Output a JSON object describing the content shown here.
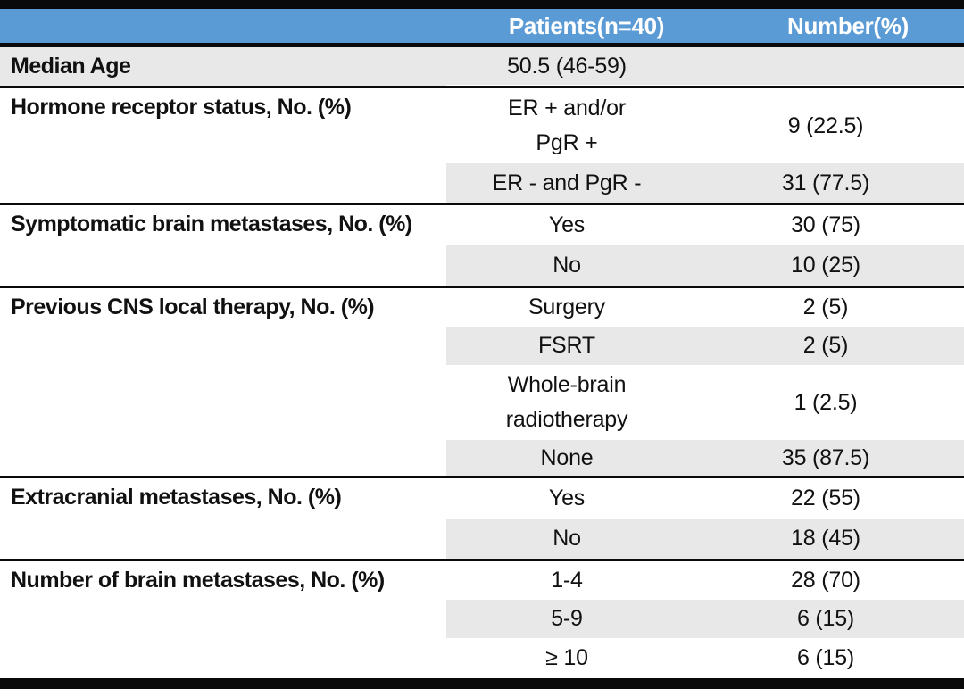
{
  "header": {
    "patients": "Patients(n=40)",
    "number": "Number(%)"
  },
  "sections": [
    {
      "label": "Median Age",
      "rows": [
        {
          "patients": "50.5 (46-59)",
          "number": ""
        }
      ]
    },
    {
      "label": "Hormone receptor status, No. (%)",
      "rows": [
        {
          "patients": "ER + and/or\nPgR +",
          "number": "9 (22.5)"
        },
        {
          "patients": "ER - and PgR -",
          "number": "31 (77.5)"
        }
      ]
    },
    {
      "label": "Symptomatic brain metastases, No. (%)",
      "rows": [
        {
          "patients": "Yes",
          "number": "30 (75)"
        },
        {
          "patients": "No",
          "number": "10 (25)"
        }
      ]
    },
    {
      "label": "Previous CNS local therapy, No. (%)",
      "rows": [
        {
          "patients": "Surgery",
          "number": "2 (5)"
        },
        {
          "patients": "FSRT",
          "number": "2 (5)"
        },
        {
          "patients": "Whole-brain\nradiotherapy",
          "number": "1 (2.5)"
        },
        {
          "patients": "None",
          "number": "35 (87.5)"
        }
      ]
    },
    {
      "label": "Extracranial metastases, No. (%)",
      "rows": [
        {
          "patients": "Yes",
          "number": "22 (55)"
        },
        {
          "patients": "No",
          "number": "18 (45)"
        }
      ]
    },
    {
      "label": "Number of brain metastases, No. (%)",
      "rows": [
        {
          "patients": "1-4",
          "number": "28 (70)"
        },
        {
          "patients": "5-9",
          "number": "6 (15)"
        },
        {
          "patients": "≥ 10",
          "number": "6 (15)"
        }
      ]
    }
  ],
  "colors": {
    "header_bg": "#5B9BD5",
    "header_text": "#FFFFFF",
    "band_bg": "#E9E8E8",
    "border": "#0A0A0A",
    "text": "#111111"
  }
}
